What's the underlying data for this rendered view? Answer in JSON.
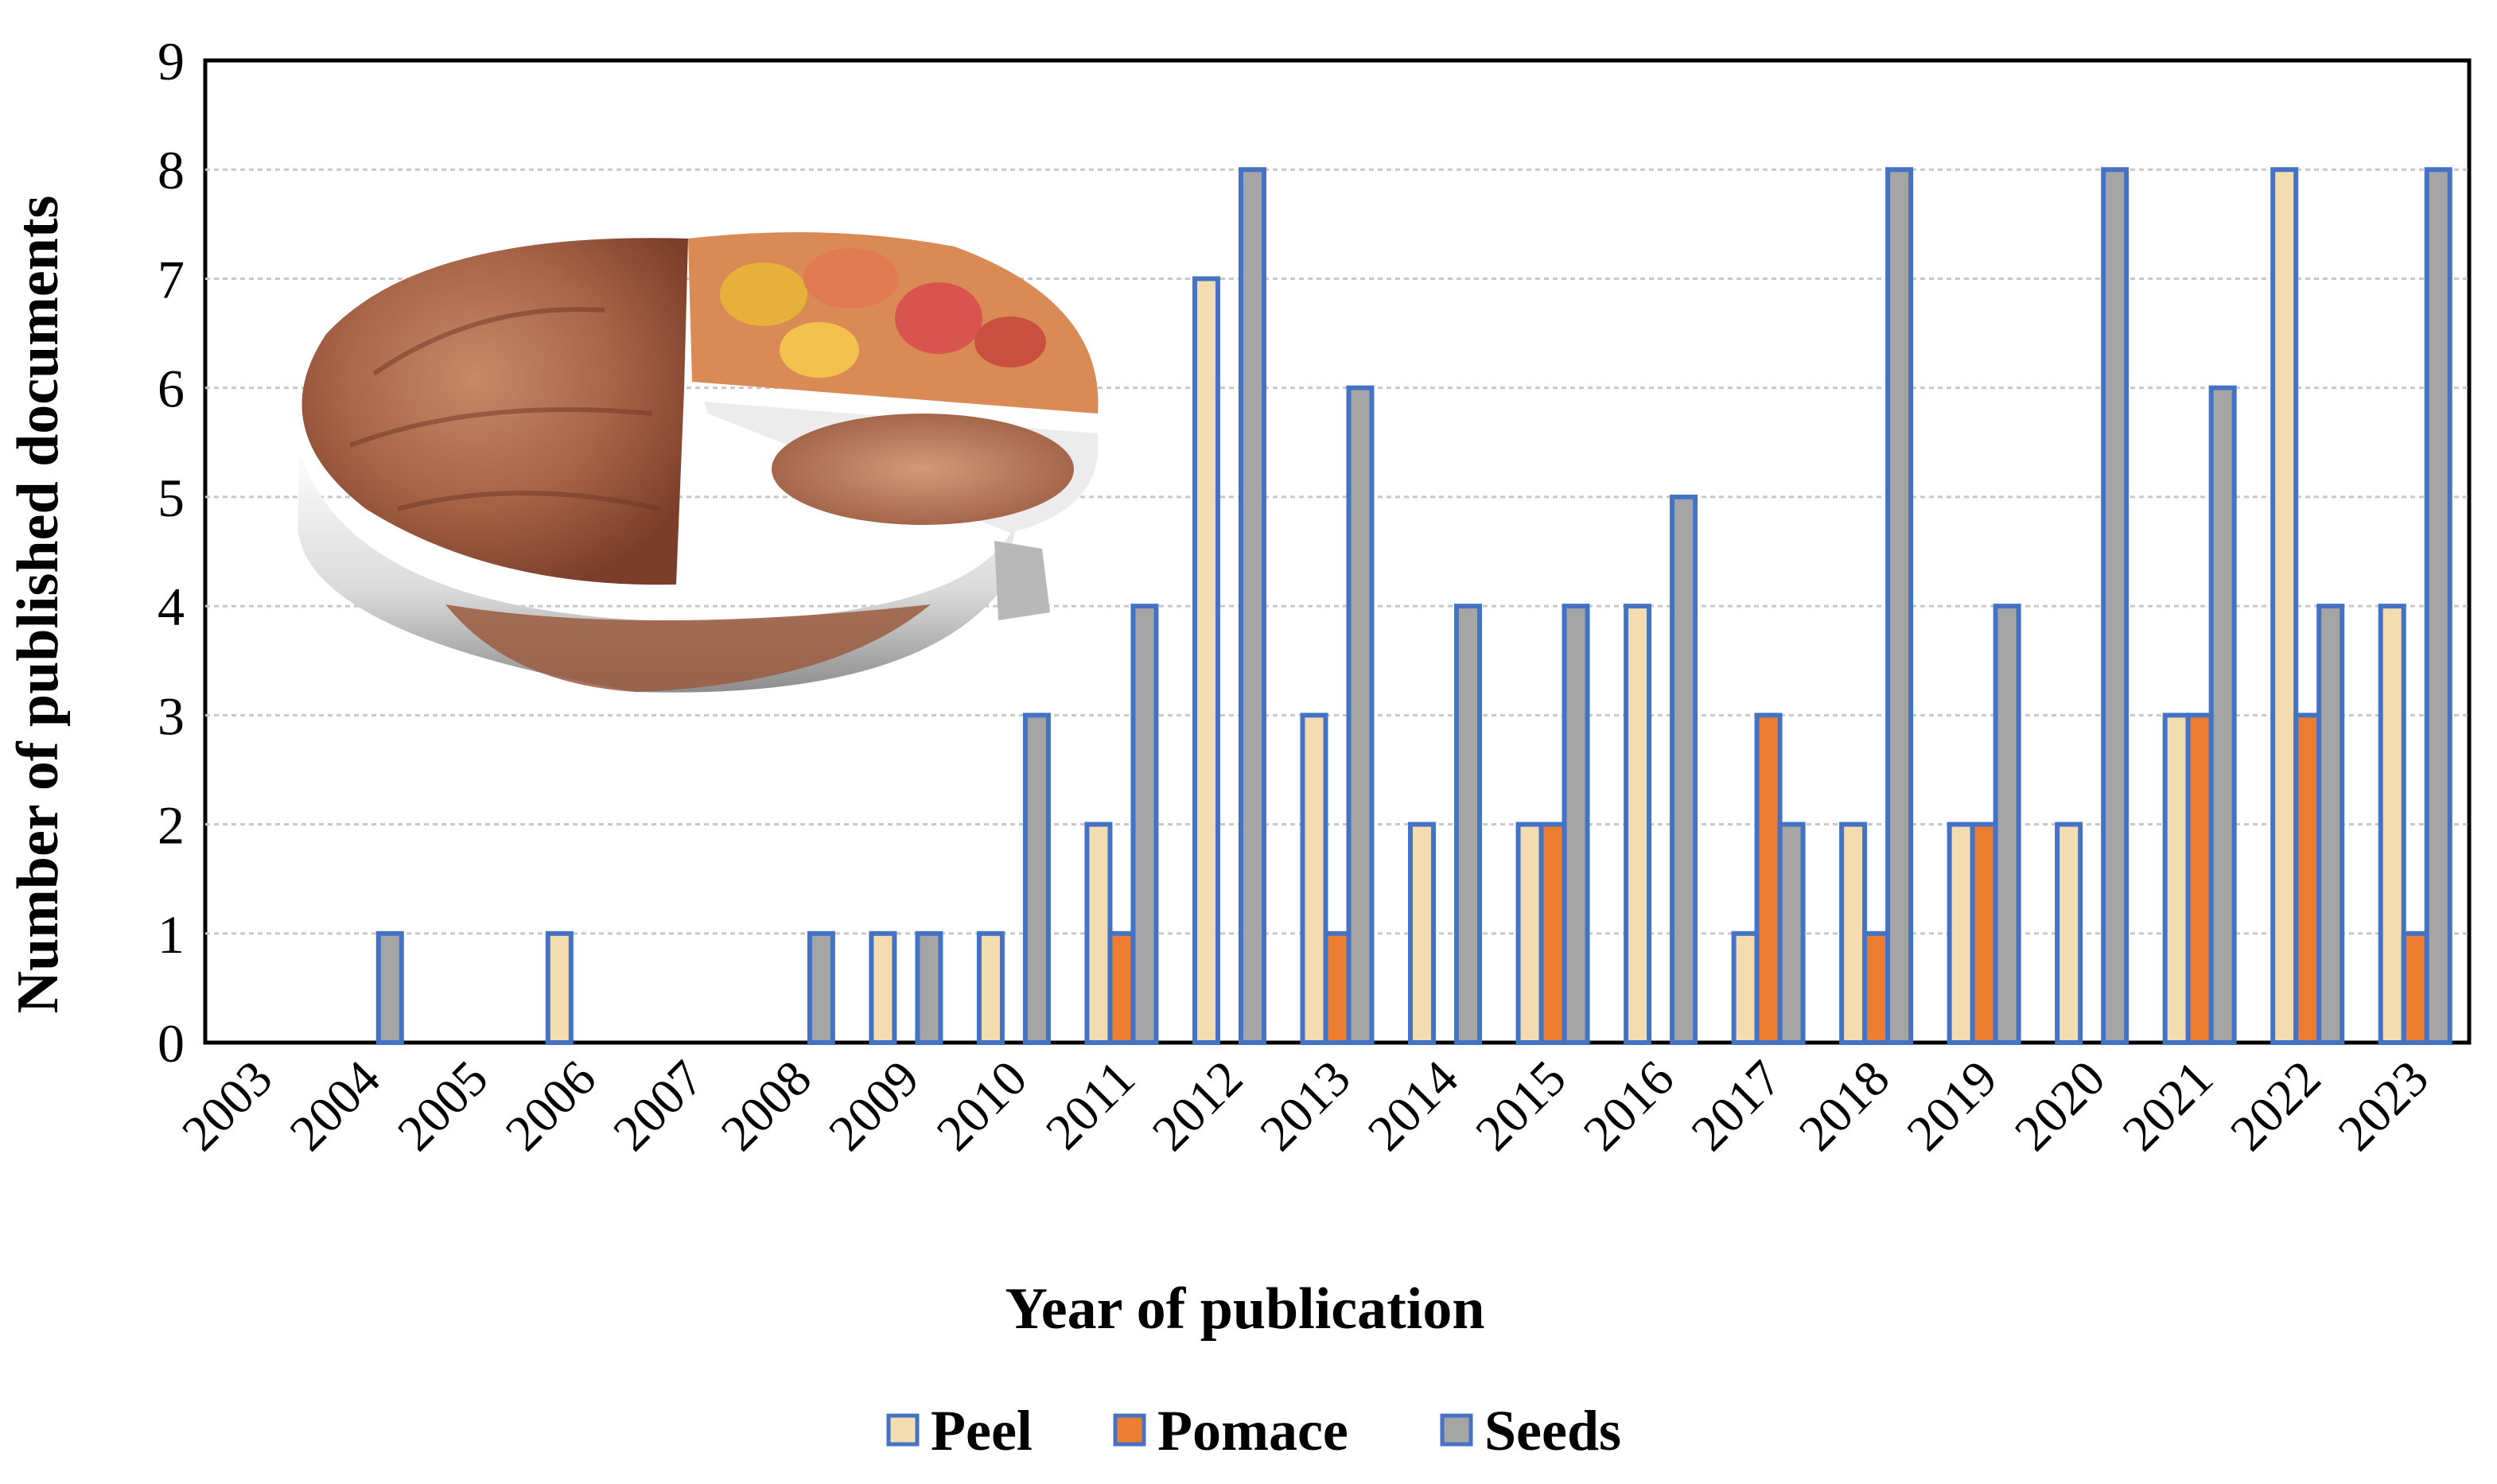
{
  "chart_data": {
    "type": "bar",
    "title": "",
    "xlabel": "Year of publication",
    "ylabel": "Number of published documents",
    "ylim": [
      0,
      9
    ],
    "yticks": [
      "0",
      "1",
      "2",
      "3",
      "4",
      "5",
      "6",
      "7",
      "8",
      "9"
    ],
    "grid": "horizontal dotted",
    "legend_position": "bottom-center",
    "categories": [
      "2003",
      "2004",
      "2005",
      "2006",
      "2007",
      "2008",
      "2009",
      "2010",
      "2011",
      "2012",
      "2013",
      "2014",
      "2015",
      "2016",
      "2017",
      "2018",
      "2019",
      "2020",
      "2021",
      "2022",
      "2023"
    ],
    "series": [
      {
        "name": "Peel",
        "color": "#f3dcb0",
        "values": [
          0,
          0,
          0,
          1,
          0,
          0,
          1,
          1,
          2,
          7,
          3,
          2,
          2,
          4,
          1,
          2,
          2,
          2,
          3,
          8,
          4
        ]
      },
      {
        "name": "Pomace",
        "color": "#ed7d31",
        "values": [
          0,
          0,
          0,
          0,
          0,
          0,
          0,
          0,
          1,
          0,
          1,
          0,
          2,
          0,
          3,
          1,
          2,
          0,
          3,
          3,
          1
        ]
      },
      {
        "name": "Seeds",
        "color": "#a5a5a5",
        "values": [
          0,
          1,
          0,
          0,
          0,
          1,
          1,
          3,
          4,
          8,
          6,
          4,
          4,
          5,
          2,
          8,
          4,
          8,
          6,
          4,
          8
        ]
      }
    ],
    "bar_outline_color": "#4472c4",
    "inset_image": "food-pie-photo"
  }
}
